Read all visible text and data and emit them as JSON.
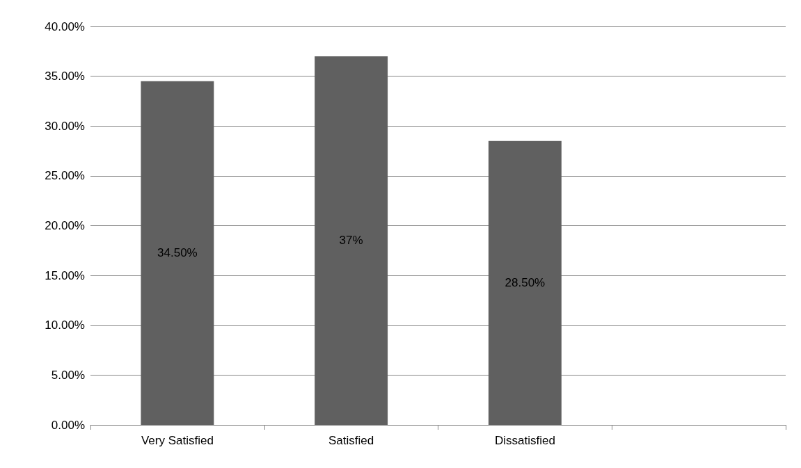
{
  "chart_data": {
    "type": "bar",
    "categories": [
      "Very Satisfied",
      "Satisfied",
      "Dissatisfied",
      null
    ],
    "values": [
      34.5,
      37,
      28.5,
      null
    ],
    "value_labels": [
      "34.50%",
      "37%",
      "28.50%",
      null
    ],
    "color": "#606060",
    "ylim": [
      0,
      40
    ],
    "yticks": [
      {
        "value": 0,
        "label": "0.00%"
      },
      {
        "value": 5,
        "label": "5.00%"
      },
      {
        "value": 10,
        "label": "10.00%"
      },
      {
        "value": 15,
        "label": "15.00%"
      },
      {
        "value": 20,
        "label": "20.00%"
      },
      {
        "value": 25,
        "label": "25.00%"
      },
      {
        "value": 30,
        "label": "30.00%"
      },
      {
        "value": 35,
        "label": "35.00%"
      },
      {
        "value": 40,
        "label": "40.00%"
      }
    ],
    "grid": "y"
  }
}
